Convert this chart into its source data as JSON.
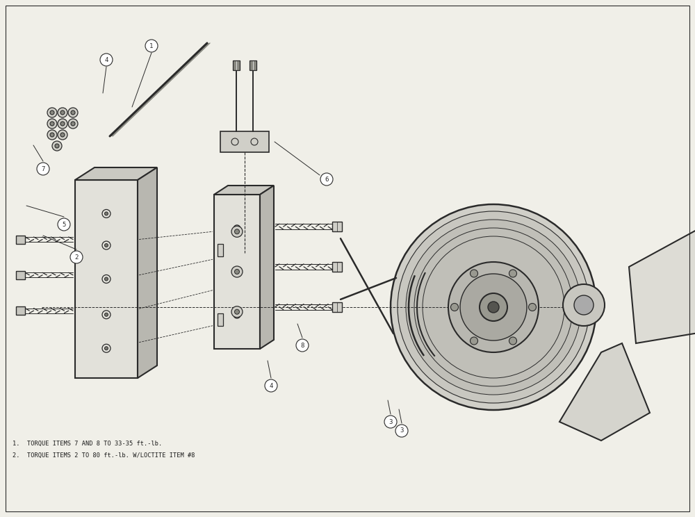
{
  "bg_color": "#f0efe8",
  "line_color": "#2a2a2a",
  "text_color": "#1a1a1a",
  "note1": "1.  TORQUE ITEMS 7 AND 8 TO 33-35 ft.-lb.",
  "note2": "2.  TORQUE ITEMS 2 TO 80 ft.-lb. W/LOCTITE ITEM #8",
  "figsize": [
    10.0,
    7.44
  ]
}
